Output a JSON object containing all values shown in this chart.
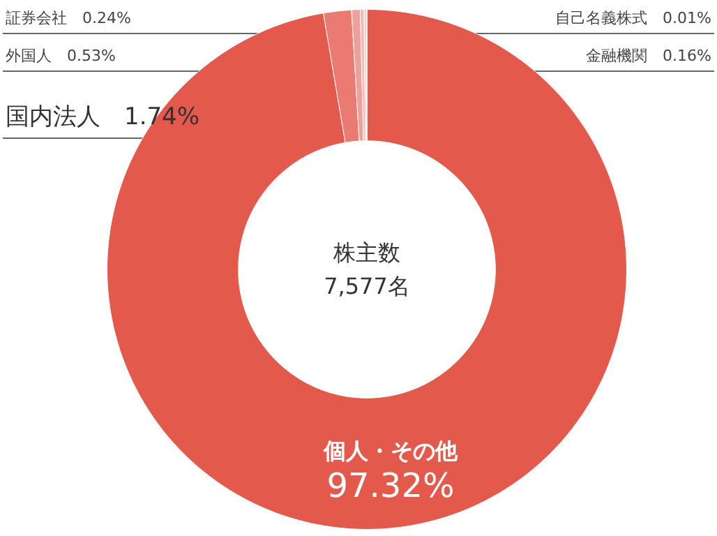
{
  "chart_data": {
    "type": "donut",
    "categories": [
      "個人・その他",
      "国内法人",
      "外国人",
      "証券会社",
      "金融機関",
      "自己名義株式"
    ],
    "values": [
      97.32,
      1.74,
      0.53,
      0.24,
      0.16,
      0.01
    ],
    "value_labels": [
      "97.32%",
      "1.74%",
      "0.53%",
      "0.24%",
      "0.16%",
      "0.01%"
    ],
    "colors": [
      "#e35a4d",
      "#eb7b72",
      "#f0a09a",
      "#f4bab5",
      "#f7d0cc",
      "#fae3e1"
    ],
    "legend": false,
    "annotations": [
      "株主数",
      "7,577名"
    ]
  }
}
